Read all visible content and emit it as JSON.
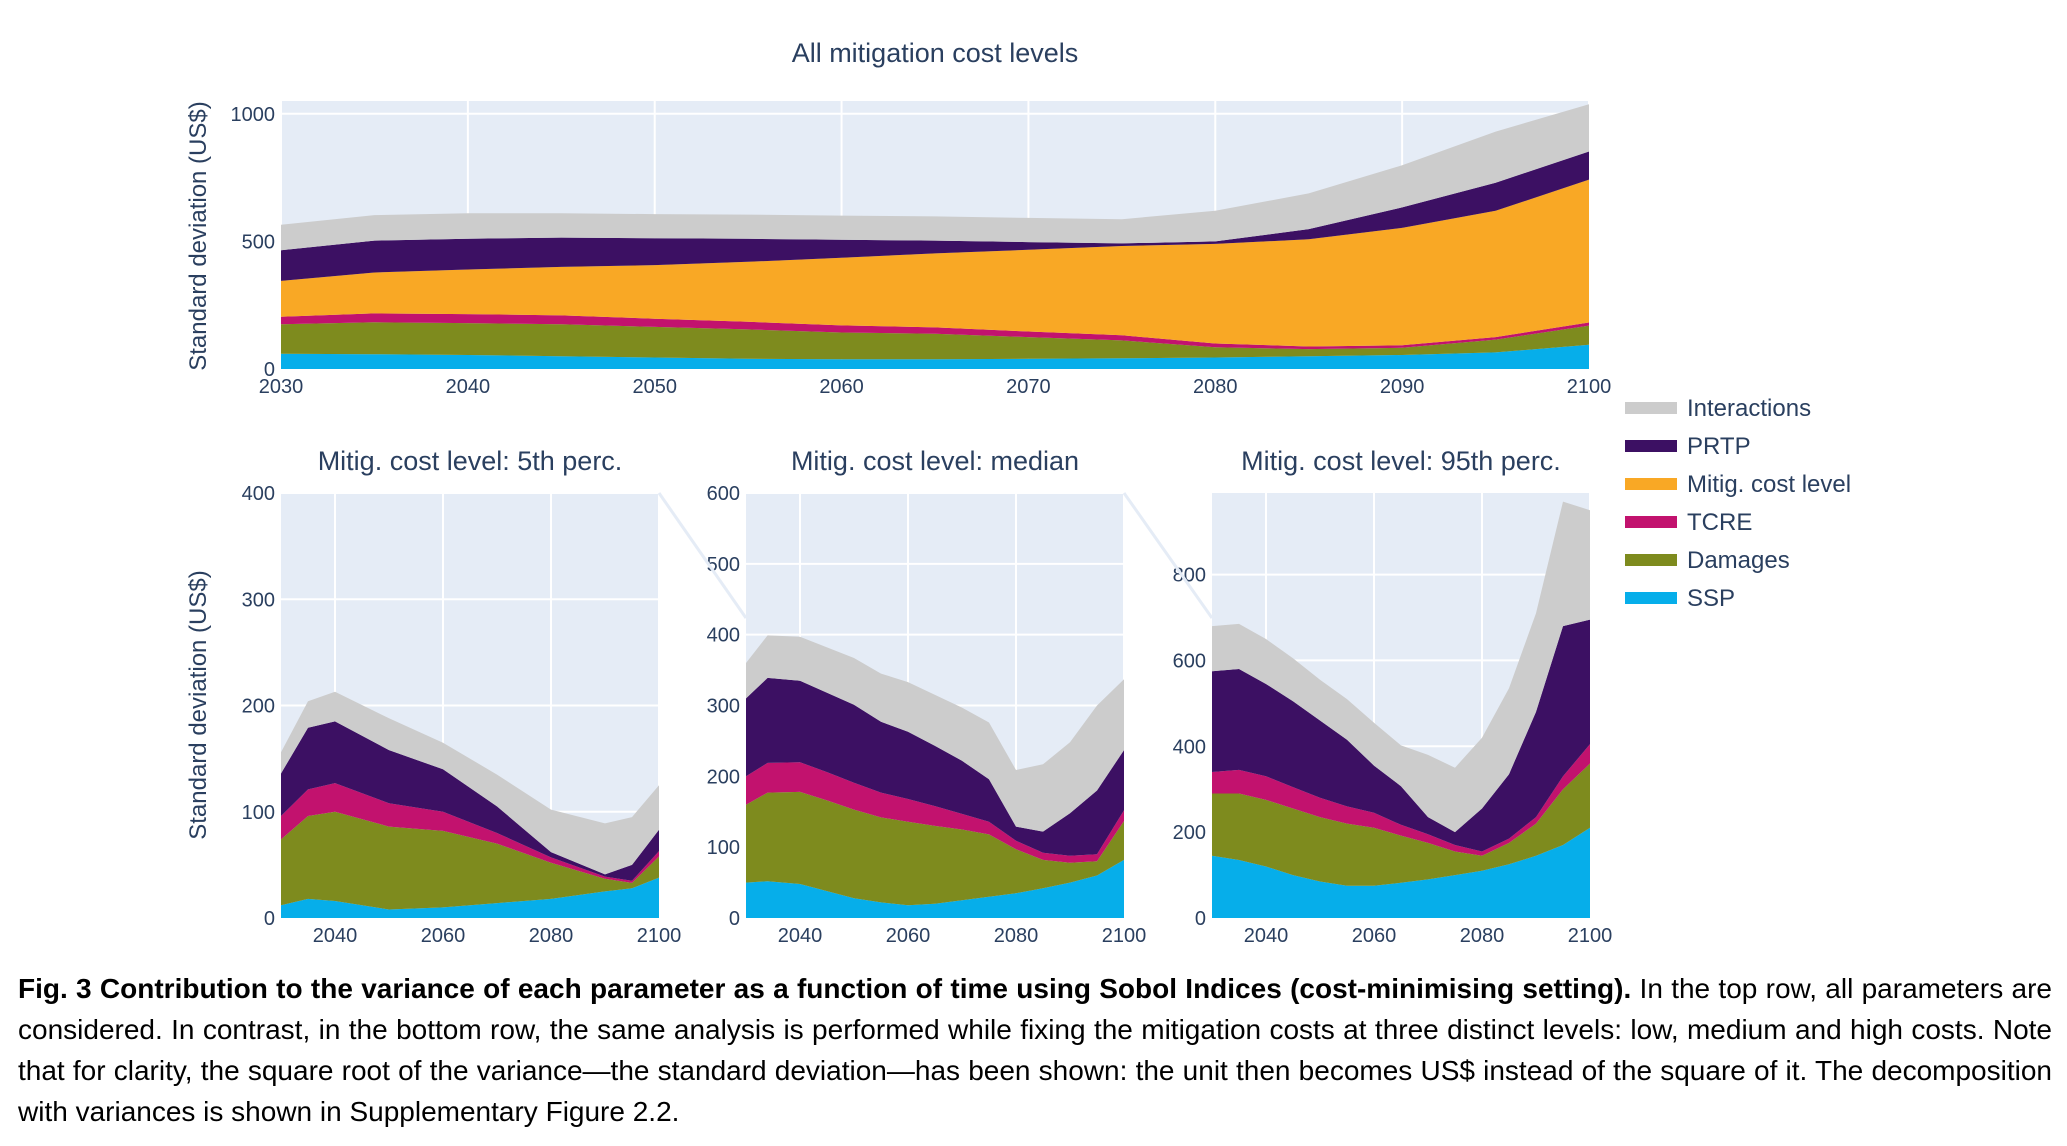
{
  "legend": {
    "items": [
      {
        "name": "Interactions",
        "color": "#cccccc"
      },
      {
        "name": "PRTP",
        "color": "#3c1063"
      },
      {
        "name": "Mitig. cost level",
        "color": "#f9a825"
      },
      {
        "name": "TCRE",
        "color": "#c2126e"
      },
      {
        "name": "Damages",
        "color": "#7e8b1e"
      },
      {
        "name": "SSP",
        "color": "#06aeea"
      }
    ]
  },
  "chart_data": [
    {
      "type": "area",
      "stacked": true,
      "title": "All mitigation cost levels",
      "ylabel": "Standard deviation (US$)",
      "xlabel": "",
      "xlim": [
        2030,
        2100
      ],
      "ylim": [
        0,
        1050
      ],
      "xticks": [
        2030,
        2040,
        2050,
        2060,
        2070,
        2080,
        2090,
        2100
      ],
      "yticks": [
        0,
        500,
        1000
      ],
      "x": [
        2030,
        2035,
        2040,
        2045,
        2050,
        2055,
        2060,
        2065,
        2070,
        2075,
        2080,
        2085,
        2090,
        2095,
        2100
      ],
      "series": [
        {
          "name": "SSP",
          "values": [
            60,
            58,
            55,
            50,
            45,
            40,
            38,
            38,
            40,
            42,
            45,
            50,
            55,
            65,
            95
          ]
        },
        {
          "name": "Damages",
          "values": [
            115,
            125,
            125,
            125,
            120,
            115,
            105,
            100,
            85,
            70,
            40,
            28,
            28,
            50,
            75
          ]
        },
        {
          "name": "TCRE",
          "values": [
            30,
            35,
            35,
            35,
            32,
            30,
            28,
            25,
            22,
            20,
            15,
            10,
            10,
            10,
            12
          ]
        },
        {
          "name": "Mitig. cost level",
          "values": [
            140,
            160,
            175,
            190,
            210,
            235,
            265,
            290,
            320,
            350,
            390,
            420,
            460,
            495,
            560
          ]
        },
        {
          "name": "PRTP",
          "values": [
            120,
            125,
            120,
            115,
            105,
            90,
            70,
            50,
            30,
            10,
            10,
            40,
            80,
            110,
            110
          ]
        },
        {
          "name": "Interactions",
          "values": [
            100,
            100,
            100,
            95,
            95,
            95,
            95,
            95,
            95,
            95,
            120,
            140,
            165,
            200,
            185
          ]
        }
      ]
    },
    {
      "type": "area",
      "stacked": true,
      "title": "Mitig. cost level: 5th perc.",
      "ylabel": "Standard deviation (US$)",
      "xlabel": "",
      "xlim": [
        2030,
        2100
      ],
      "ylim": [
        0,
        400
      ],
      "xticks": [
        2040,
        2060,
        2080,
        2100
      ],
      "yticks": [
        0,
        100,
        200,
        300,
        400
      ],
      "x": [
        2030,
        2035,
        2040,
        2050,
        2060,
        2070,
        2080,
        2090,
        2095,
        2100
      ],
      "series": [
        {
          "name": "SSP",
          "values": [
            12,
            18,
            16,
            8,
            10,
            14,
            18,
            25,
            28,
            38
          ]
        },
        {
          "name": "Damages",
          "values": [
            62,
            78,
            84,
            78,
            72,
            56,
            34,
            12,
            5,
            20
          ]
        },
        {
          "name": "TCRE",
          "values": [
            22,
            25,
            27,
            22,
            18,
            10,
            5,
            2,
            2,
            5
          ]
        },
        {
          "name": "Mitig. cost level",
          "values": [
            0,
            0,
            0,
            0,
            0,
            0,
            0,
            0,
            0,
            0
          ]
        },
        {
          "name": "PRTP",
          "values": [
            40,
            58,
            58,
            50,
            40,
            25,
            5,
            2,
            15,
            20
          ]
        },
        {
          "name": "Interactions",
          "values": [
            20,
            25,
            28,
            30,
            25,
            30,
            40,
            48,
            45,
            42
          ]
        }
      ]
    },
    {
      "type": "area",
      "stacked": true,
      "title": "Mitig. cost level: median",
      "ylabel": "",
      "xlabel": "",
      "xlim": [
        2030,
        2100
      ],
      "ylim": [
        0,
        600
      ],
      "xticks": [
        2040,
        2060,
        2080,
        2100
      ],
      "yticks": [
        0,
        100,
        200,
        300,
        400,
        500,
        600
      ],
      "x": [
        2030,
        2034,
        2040,
        2045,
        2050,
        2055,
        2060,
        2065,
        2070,
        2075,
        2080,
        2085,
        2090,
        2095,
        2100
      ],
      "series": [
        {
          "name": "SSP",
          "values": [
            50,
            52,
            48,
            38,
            28,
            22,
            18,
            20,
            25,
            30,
            35,
            42,
            50,
            60,
            82
          ]
        },
        {
          "name": "Damages",
          "values": [
            110,
            125,
            130,
            128,
            125,
            120,
            118,
            110,
            100,
            88,
            62,
            40,
            28,
            20,
            55
          ]
        },
        {
          "name": "TCRE",
          "values": [
            40,
            42,
            42,
            40,
            38,
            35,
            32,
            28,
            22,
            18,
            12,
            10,
            10,
            10,
            15
          ]
        },
        {
          "name": "Mitig. cost level",
          "values": [
            0,
            0,
            0,
            0,
            0,
            0,
            0,
            0,
            0,
            0,
            0,
            0,
            0,
            0,
            0
          ]
        },
        {
          "name": "PRTP",
          "values": [
            110,
            120,
            115,
            112,
            110,
            100,
            95,
            85,
            75,
            60,
            20,
            30,
            60,
            90,
            85
          ]
        },
        {
          "name": "Interactions",
          "values": [
            50,
            60,
            62,
            64,
            66,
            68,
            70,
            72,
            75,
            80,
            80,
            95,
            100,
            120,
            100
          ]
        }
      ]
    },
    {
      "type": "area",
      "stacked": true,
      "title": "Mitig. cost level: 95th perc.",
      "ylabel": "",
      "xlabel": "",
      "xlim": [
        2030,
        2100
      ],
      "ylim": [
        0,
        990
      ],
      "xticks": [
        2040,
        2060,
        2080,
        2100
      ],
      "yticks": [
        0,
        200,
        400,
        600,
        800
      ],
      "x": [
        2030,
        2035,
        2040,
        2045,
        2050,
        2055,
        2060,
        2065,
        2070,
        2075,
        2080,
        2085,
        2090,
        2095,
        2100
      ],
      "series": [
        {
          "name": "SSP",
          "values": [
            145,
            135,
            120,
            100,
            85,
            75,
            75,
            82,
            90,
            100,
            110,
            125,
            145,
            170,
            210
          ]
        },
        {
          "name": "Damages",
          "values": [
            145,
            155,
            155,
            155,
            150,
            145,
            135,
            110,
            85,
            55,
            35,
            50,
            75,
            130,
            150
          ]
        },
        {
          "name": "TCRE",
          "values": [
            50,
            55,
            55,
            50,
            45,
            40,
            35,
            25,
            20,
            15,
            10,
            10,
            15,
            30,
            45
          ]
        },
        {
          "name": "Mitig. cost level",
          "values": [
            0,
            0,
            0,
            0,
            0,
            0,
            0,
            0,
            0,
            0,
            0,
            0,
            0,
            0,
            0
          ]
        },
        {
          "name": "PRTP",
          "values": [
            235,
            235,
            215,
            200,
            180,
            155,
            110,
            90,
            40,
            30,
            100,
            150,
            245,
            350,
            290
          ]
        },
        {
          "name": "Interactions",
          "values": [
            105,
            105,
            105,
            100,
            95,
            95,
            100,
            95,
            145,
            150,
            165,
            200,
            230,
            290,
            255
          ]
        }
      ]
    }
  ],
  "caption": {
    "bold": "Fig. 3 Contribution to the variance of each parameter as a function of time using Sobol Indices (cost-minimising setting).",
    "text": " In the top row, all parameters are considered. In contrast, in the bottom row, the same analysis is performed while fixing the mitigation costs at three distinct levels: low, medium and high costs. Note that for clarity, the square root of the variance—the standard deviation—has been shown: the unit then becomes US$ instead of the square of it. The decomposition with variances is shown in Supplementary Figure 2.2."
  }
}
